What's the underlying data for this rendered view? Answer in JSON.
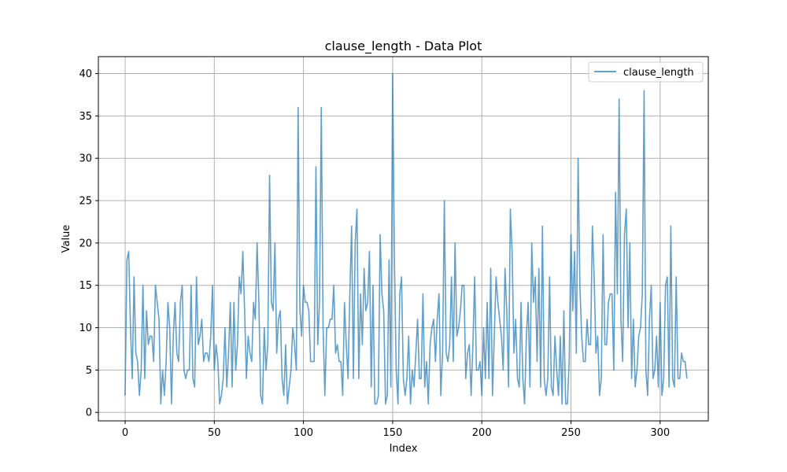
{
  "chart_data": {
    "type": "line",
    "title": "clause_length - Data Plot",
    "xlabel": "Index",
    "ylabel": "Value",
    "xlim": [
      -15,
      327
    ],
    "ylim": [
      -1,
      42
    ],
    "xticks": [
      0,
      50,
      100,
      150,
      200,
      250,
      300
    ],
    "yticks": [
      0,
      5,
      10,
      15,
      20,
      25,
      30,
      35,
      40
    ],
    "grid": true,
    "legend_position": "top-right",
    "series": [
      {
        "name": "clause_length",
        "color": "#1f77b4",
        "y": [
          2,
          18,
          19,
          10,
          4,
          16,
          7,
          6,
          2,
          5,
          15,
          4,
          12,
          8,
          9,
          9,
          6,
          15,
          13,
          11,
          1,
          5,
          2,
          6,
          13,
          10,
          1,
          9,
          13,
          7,
          6,
          13,
          15,
          5,
          4,
          5,
          5,
          15,
          4,
          3,
          16,
          8,
          9,
          11,
          6,
          7,
          7,
          6,
          9,
          15,
          5,
          8,
          6,
          1,
          2,
          4,
          10,
          3,
          7,
          13,
          3,
          13,
          5,
          8,
          16,
          14,
          19,
          12,
          4,
          9,
          7,
          6,
          13,
          11,
          20,
          13,
          2,
          1,
          10,
          5,
          8,
          28,
          13,
          12,
          20,
          7,
          11,
          12,
          4,
          2,
          8,
          1,
          3,
          5,
          10,
          8,
          5,
          36,
          12,
          9,
          15,
          13,
          13,
          12,
          6,
          6,
          6,
          29,
          8,
          13,
          36,
          10,
          2,
          10,
          10,
          11,
          11,
          15,
          7,
          8,
          6,
          6,
          2,
          13,
          8,
          4,
          14,
          22,
          4,
          20,
          24,
          4,
          14,
          8,
          17,
          12,
          13,
          19,
          3,
          15,
          1,
          1,
          2,
          21,
          14,
          12,
          1,
          2,
          18,
          3,
          40,
          18,
          5,
          1,
          14,
          16,
          4,
          2,
          4,
          9,
          1,
          5,
          3,
          7,
          11,
          4,
          4,
          14,
          3,
          6,
          1,
          8,
          10,
          11,
          6,
          11,
          14,
          2,
          7,
          25,
          7,
          6,
          8,
          16,
          6,
          20,
          9,
          10,
          12,
          15,
          15,
          4,
          7,
          8,
          2,
          8,
          16,
          5,
          5,
          6,
          2,
          10,
          4,
          13,
          4,
          17,
          2,
          9,
          16,
          13,
          11,
          9,
          5,
          17,
          12,
          3,
          24,
          19,
          7,
          11,
          4,
          3,
          13,
          4,
          1,
          9,
          13,
          3,
          20,
          13,
          16,
          6,
          17,
          3,
          22,
          4,
          2,
          4,
          16,
          3,
          2,
          9,
          5,
          2,
          9,
          1,
          12,
          1,
          1,
          6,
          21,
          12,
          19,
          7,
          30,
          15,
          9,
          6,
          6,
          11,
          8,
          8,
          22,
          16,
          7,
          9,
          2,
          4,
          21,
          8,
          8,
          13,
          14,
          14,
          5,
          26,
          14,
          37,
          11,
          6,
          21,
          24,
          10,
          20,
          4,
          11,
          3,
          5,
          9,
          10,
          14,
          38,
          5,
          2,
          11,
          15,
          4,
          5,
          9,
          3,
          13,
          2,
          4,
          15,
          16,
          3,
          22,
          4,
          3,
          16,
          4,
          4,
          7,
          6,
          6,
          4
        ]
      }
    ]
  }
}
